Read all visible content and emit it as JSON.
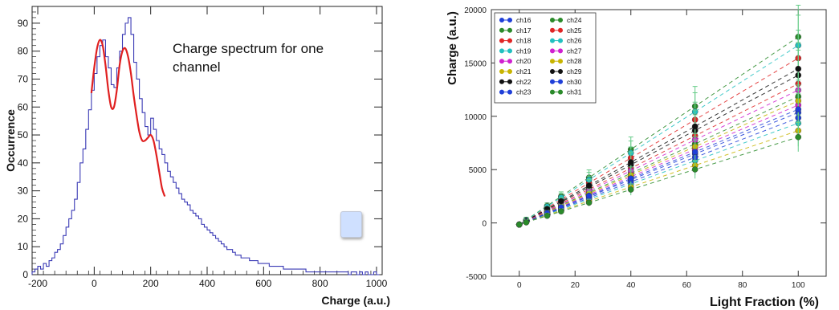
{
  "chart_data": [
    {
      "type": "histogram",
      "title": "Charge spectrum for one channel",
      "xlabel": "Charge (a.u.)",
      "ylabel": "Occurrence",
      "xlim": [
        -220,
        1020
      ],
      "ylim": [
        0,
        96
      ],
      "x_ticks": [
        -200,
        0,
        200,
        400,
        600,
        800,
        1000
      ],
      "y_ticks": [
        0,
        10,
        20,
        30,
        40,
        50,
        60,
        70,
        80,
        90
      ],
      "bin_width": 10,
      "bins_x": [
        -220,
        -210,
        -200,
        -190,
        -180,
        -170,
        -160,
        -150,
        -140,
        -130,
        -120,
        -110,
        -100,
        -90,
        -80,
        -70,
        -60,
        -50,
        -40,
        -30,
        -20,
        -10,
        0,
        10,
        20,
        30,
        40,
        50,
        60,
        70,
        80,
        90,
        100,
        110,
        120,
        130,
        140,
        150,
        160,
        170,
        180,
        190,
        200,
        210,
        220,
        230,
        240,
        250,
        260,
        270,
        280,
        290,
        300,
        310,
        320,
        330,
        340,
        350,
        360,
        370,
        380,
        390,
        400,
        410,
        420,
        430,
        440,
        450,
        460,
        470,
        480,
        490,
        500,
        510,
        520,
        530,
        540,
        550,
        560,
        570,
        580,
        590,
        600,
        610,
        620,
        630,
        640,
        650,
        660,
        670,
        680,
        690,
        700,
        710,
        720,
        730,
        740,
        750,
        760,
        770,
        780,
        790,
        800,
        810,
        820,
        830,
        840,
        850,
        860,
        870,
        880,
        890,
        900,
        910,
        920,
        930,
        940,
        950,
        960,
        970,
        980,
        990,
        1000
      ],
      "counts": [
        1,
        2,
        3,
        2,
        4,
        3,
        5,
        6,
        8,
        9,
        11,
        14,
        17,
        20,
        23,
        27,
        33,
        40,
        45,
        52,
        59,
        66,
        72,
        78,
        82,
        84,
        78,
        74,
        68,
        67,
        74,
        80,
        86,
        90,
        92,
        86,
        76,
        70,
        63,
        58,
        53,
        50,
        56,
        52,
        48,
        45,
        43,
        40,
        37,
        35,
        33,
        31,
        29,
        27,
        26,
        25,
        23,
        22,
        21,
        20,
        18,
        17,
        16,
        15,
        14,
        13,
        12,
        11,
        10,
        9,
        9,
        8,
        7,
        7,
        6,
        6,
        6,
        5,
        5,
        5,
        4,
        4,
        4,
        4,
        3,
        3,
        3,
        3,
        3,
        2,
        2,
        2,
        2,
        2,
        2,
        2,
        2,
        1,
        1,
        1,
        1,
        1,
        1,
        1,
        1,
        1,
        1,
        1,
        1,
        1,
        1,
        1,
        0,
        1,
        1,
        0,
        1,
        0,
        1,
        0,
        0,
        1,
        0
      ],
      "fit_name": "fit",
      "fit_x": [
        -10,
        0,
        10,
        20,
        30,
        40,
        50,
        60,
        70,
        80,
        90,
        100,
        110,
        120,
        130,
        140,
        150,
        160,
        170,
        180,
        190,
        200,
        210,
        220,
        230,
        240,
        250
      ],
      "fit_y": [
        65,
        74,
        81,
        84,
        82,
        75,
        66,
        60,
        60,
        66,
        75,
        80,
        81,
        78,
        72,
        64,
        57,
        51,
        48,
        48,
        49,
        50,
        48,
        43,
        37,
        31,
        28
      ],
      "colors": {
        "hist": "#3a3ab5",
        "fit": "#e02020"
      }
    },
    {
      "type": "scatter",
      "xlabel": "Light Fraction (%)",
      "ylabel": "Charge (a.u.)",
      "xlim": [
        -10,
        110
      ],
      "ylim": [
        -5000,
        20000
      ],
      "x_ticks": [
        0,
        20,
        40,
        60,
        80,
        100
      ],
      "y_ticks": [
        -5000,
        0,
        5000,
        10000,
        15000,
        20000
      ],
      "x_points": [
        0,
        2.5,
        10,
        15,
        25,
        40,
        63,
        100
      ],
      "legend_placement": "top-left",
      "series": [
        {
          "name": "ch16",
          "color": "#1f3fd8",
          "slope": 105
        },
        {
          "name": "ch17",
          "color": "#2a8a2a",
          "slope": 120
        },
        {
          "name": "ch18",
          "color": "#e02525",
          "slope": 132
        },
        {
          "name": "ch19",
          "color": "#22c0c0",
          "slope": 95
        },
        {
          "name": "ch20",
          "color": "#d020d0",
          "slope": 112
        },
        {
          "name": "ch21",
          "color": "#c8b400",
          "slope": 88
        },
        {
          "name": "ch22",
          "color": "#111111",
          "slope": 140
        },
        {
          "name": "ch23",
          "color": "#1f3fd8",
          "slope": 100
        },
        {
          "name": "ch24",
          "color": "#2a8a2a",
          "slope": 176
        },
        {
          "name": "ch25",
          "color": "#e02525",
          "slope": 156
        },
        {
          "name": "ch26",
          "color": "#22c0c0",
          "slope": 168
        },
        {
          "name": "ch27",
          "color": "#d020d0",
          "slope": 126
        },
        {
          "name": "ch28",
          "color": "#c8b400",
          "slope": 116
        },
        {
          "name": "ch29",
          "color": "#111111",
          "slope": 146
        },
        {
          "name": "ch30",
          "color": "#1f3fd8",
          "slope": 108
        },
        {
          "name": "ch31",
          "color": "#2a8a2a",
          "slope": 82
        }
      ]
    }
  ],
  "legend_overlay": ""
}
